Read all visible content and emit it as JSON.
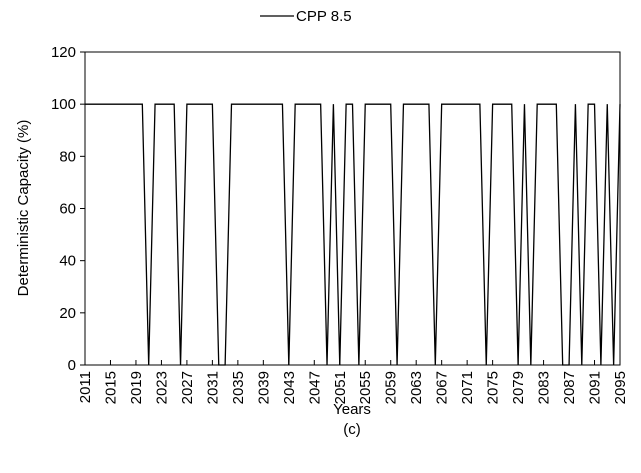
{
  "chart_data": {
    "type": "line",
    "xlabel": "Years",
    "ylabel": "Deterministic Capacity (%)",
    "caption": "(c)",
    "x": [
      2011,
      2012,
      2013,
      2014,
      2015,
      2016,
      2017,
      2018,
      2019,
      2020,
      2021,
      2022,
      2023,
      2024,
      2025,
      2026,
      2027,
      2028,
      2029,
      2030,
      2031,
      2032,
      2033,
      2034,
      2035,
      2036,
      2037,
      2038,
      2039,
      2040,
      2041,
      2042,
      2043,
      2044,
      2045,
      2046,
      2047,
      2048,
      2049,
      2050,
      2051,
      2052,
      2053,
      2054,
      2055,
      2056,
      2057,
      2058,
      2059,
      2060,
      2061,
      2062,
      2063,
      2064,
      2065,
      2066,
      2067,
      2068,
      2069,
      2070,
      2071,
      2072,
      2073,
      2074,
      2075,
      2076,
      2077,
      2078,
      2079,
      2080,
      2081,
      2082,
      2083,
      2084,
      2085,
      2086,
      2087,
      2088,
      2089,
      2090,
      2091,
      2092,
      2093,
      2094,
      2095
    ],
    "series": [
      {
        "name": "CPP 8.5",
        "color": "#000000",
        "values": [
          100,
          100,
          100,
          100,
          100,
          100,
          100,
          100,
          100,
          100,
          0,
          100,
          100,
          100,
          100,
          0,
          100,
          100,
          100,
          100,
          100,
          0,
          0,
          100,
          100,
          100,
          100,
          100,
          100,
          100,
          100,
          100,
          0,
          100,
          100,
          100,
          100,
          100,
          0,
          100,
          0,
          100,
          100,
          0,
          100,
          100,
          100,
          100,
          100,
          0,
          100,
          100,
          100,
          100,
          100,
          0,
          100,
          100,
          100,
          100,
          100,
          100,
          100,
          0,
          100,
          100,
          100,
          100,
          0,
          100,
          0,
          100,
          100,
          100,
          100,
          0,
          0,
          100,
          0,
          100,
          100,
          0,
          100,
          0,
          100
        ]
      }
    ],
    "xlim": [
      2011,
      2095
    ],
    "xticks": [
      2011,
      2015,
      2019,
      2023,
      2027,
      2031,
      2035,
      2039,
      2043,
      2047,
      2051,
      2055,
      2059,
      2063,
      2067,
      2071,
      2075,
      2079,
      2083,
      2087,
      2091,
      2095
    ],
    "ylim": [
      0,
      120
    ],
    "yticks": [
      0,
      20,
      40,
      60,
      80,
      100,
      120
    ],
    "legend": "top"
  }
}
